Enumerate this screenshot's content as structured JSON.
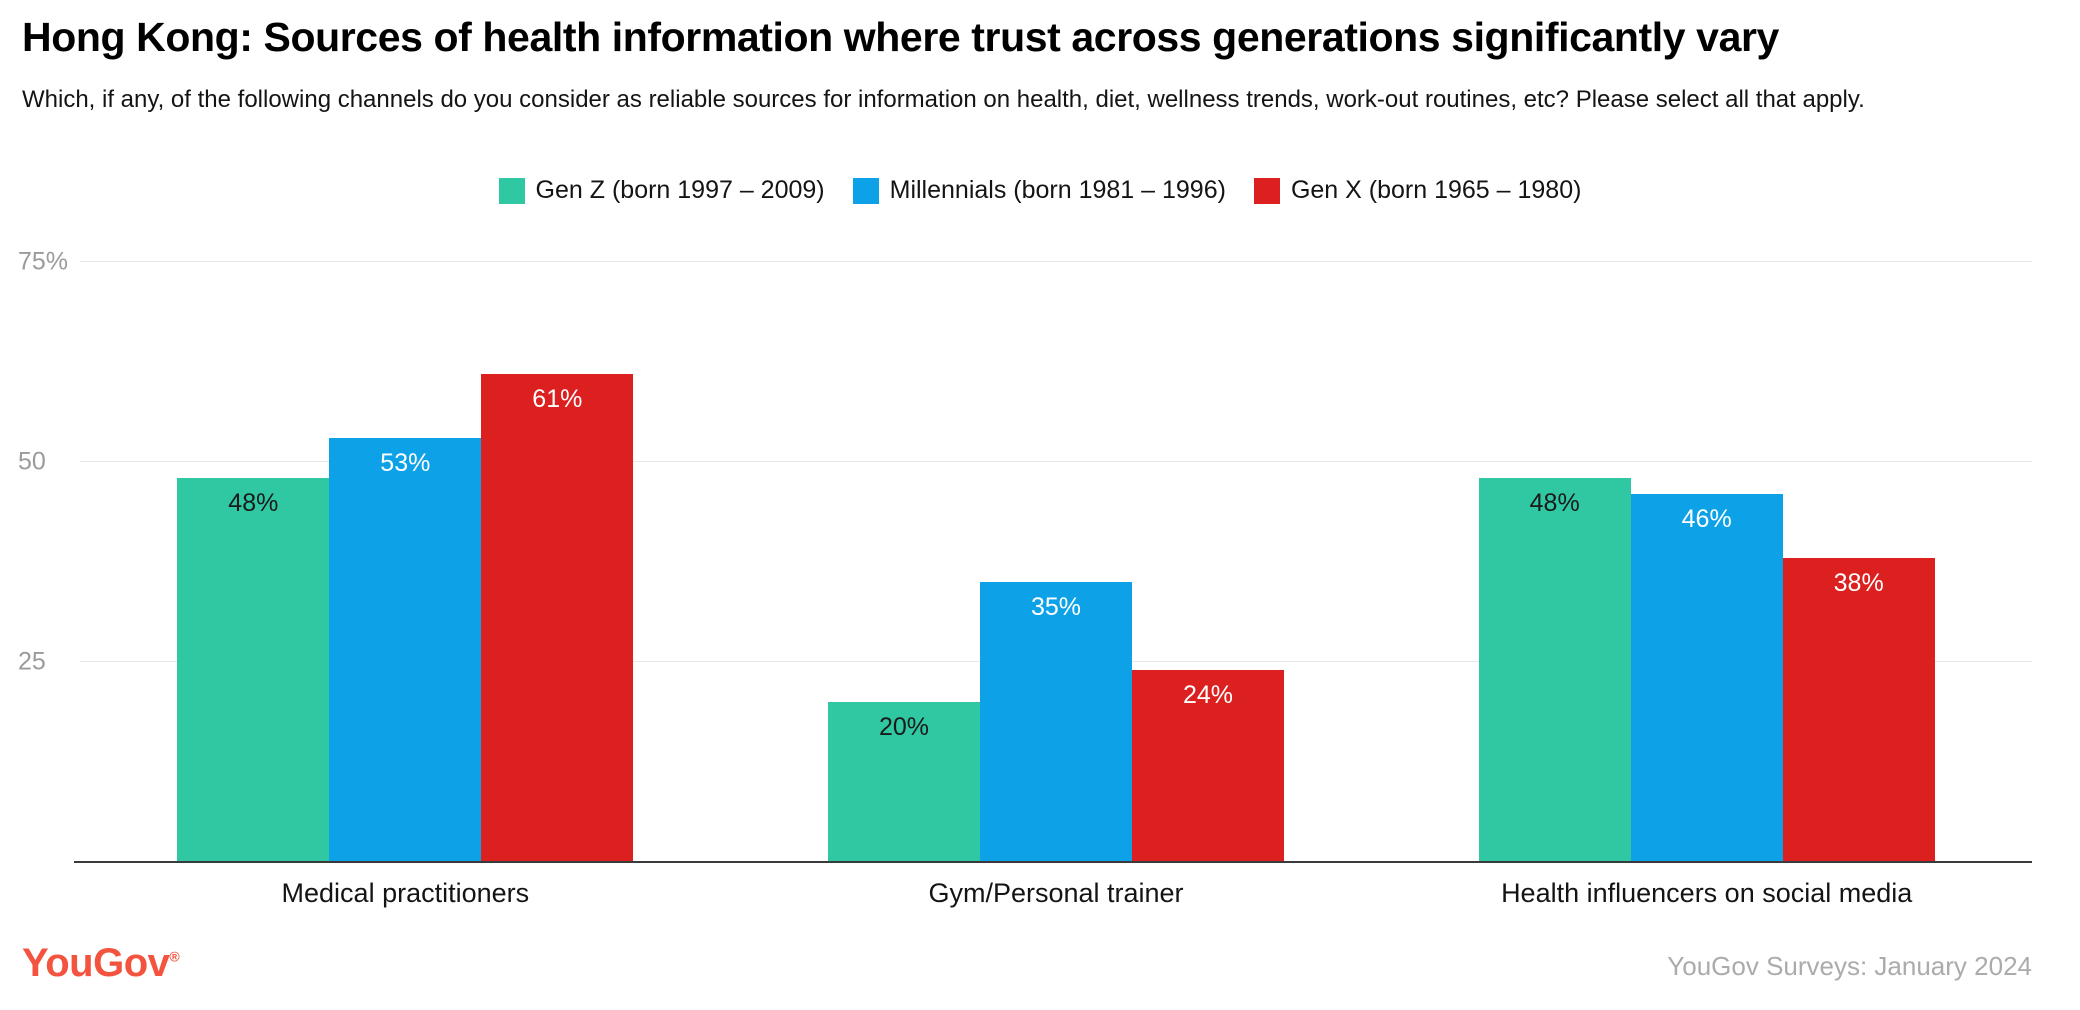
{
  "chart_data": {
    "type": "bar",
    "title": "Hong Kong: Sources of health information where trust across generations significantly vary",
    "subtitle": "Which, if any, of the following channels do you consider as reliable sources for information on health, diet, wellness trends, work-out routines, etc? Please select all that apply.",
    "categories": [
      "Medical practitioners",
      "Gym/Personal trainer",
      "Health influencers on social media"
    ],
    "series": [
      {
        "name": "Gen Z (born 1997 – 2009)",
        "color": "#2fc8a2",
        "label_color": "#1a1a1a",
        "values": [
          48,
          20,
          48
        ]
      },
      {
        "name": "Millennials (born 1981 – 1996)",
        "color": "#0da2e8",
        "label_color": "#ffffff",
        "values": [
          53,
          35,
          46
        ]
      },
      {
        "name": "Gen X (born 1965 – 1980)",
        "color": "#dc1f1f",
        "label_color": "#ffffff",
        "values": [
          61,
          24,
          38
        ]
      }
    ],
    "value_suffix": "%",
    "y_ticks": [
      {
        "value": 75,
        "label": "75%"
      },
      {
        "value": 50,
        "label": "50"
      },
      {
        "value": 25,
        "label": "25"
      }
    ],
    "ylim": [
      0,
      75
    ],
    "grid": true,
    "legend_position": "top-center",
    "xlabel": "",
    "ylabel": ""
  },
  "footer": {
    "logo_text": "YouGov",
    "logo_registered": "®",
    "logo_color": "#f2543f",
    "source": "YouGov Surveys: January 2024"
  }
}
